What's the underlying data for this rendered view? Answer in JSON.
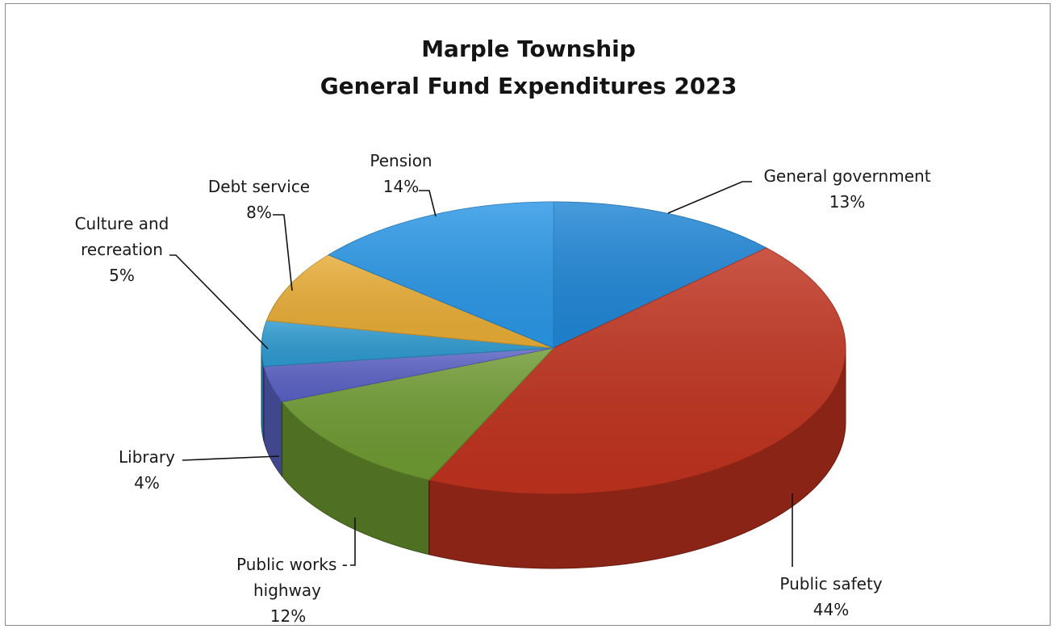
{
  "chart_data": {
    "type": "pie",
    "title": "Marple Township",
    "subtitle": "General Fund Expenditures 2023",
    "categories": [
      "General government",
      "Public safety",
      "Public works - highway",
      "Library",
      "Culture and recreation",
      "Debt service",
      "Pension"
    ],
    "values": [
      13,
      44,
      12,
      4,
      5,
      8,
      14
    ],
    "value_labels": [
      "13%",
      "44%",
      "12%",
      "4%",
      "5%",
      "8%",
      "14%"
    ],
    "label_lines": [
      [
        "General government",
        "13%"
      ],
      [
        "Public safety",
        "44%"
      ],
      [
        "Public works -",
        "highway",
        "12%"
      ],
      [
        "Library",
        "4%"
      ],
      [
        "Culture and",
        "recreation",
        "5%"
      ],
      [
        "Debt service",
        "8%"
      ],
      [
        "Pension",
        "14%"
      ]
    ],
    "colors": [
      "#1f86d6",
      "#c0321e",
      "#6e9a31",
      "#5a62c4",
      "#2e9ad0",
      "#e8ac35",
      "#2a97e6"
    ],
    "style": "3d-exploded-none",
    "legend": "none"
  }
}
